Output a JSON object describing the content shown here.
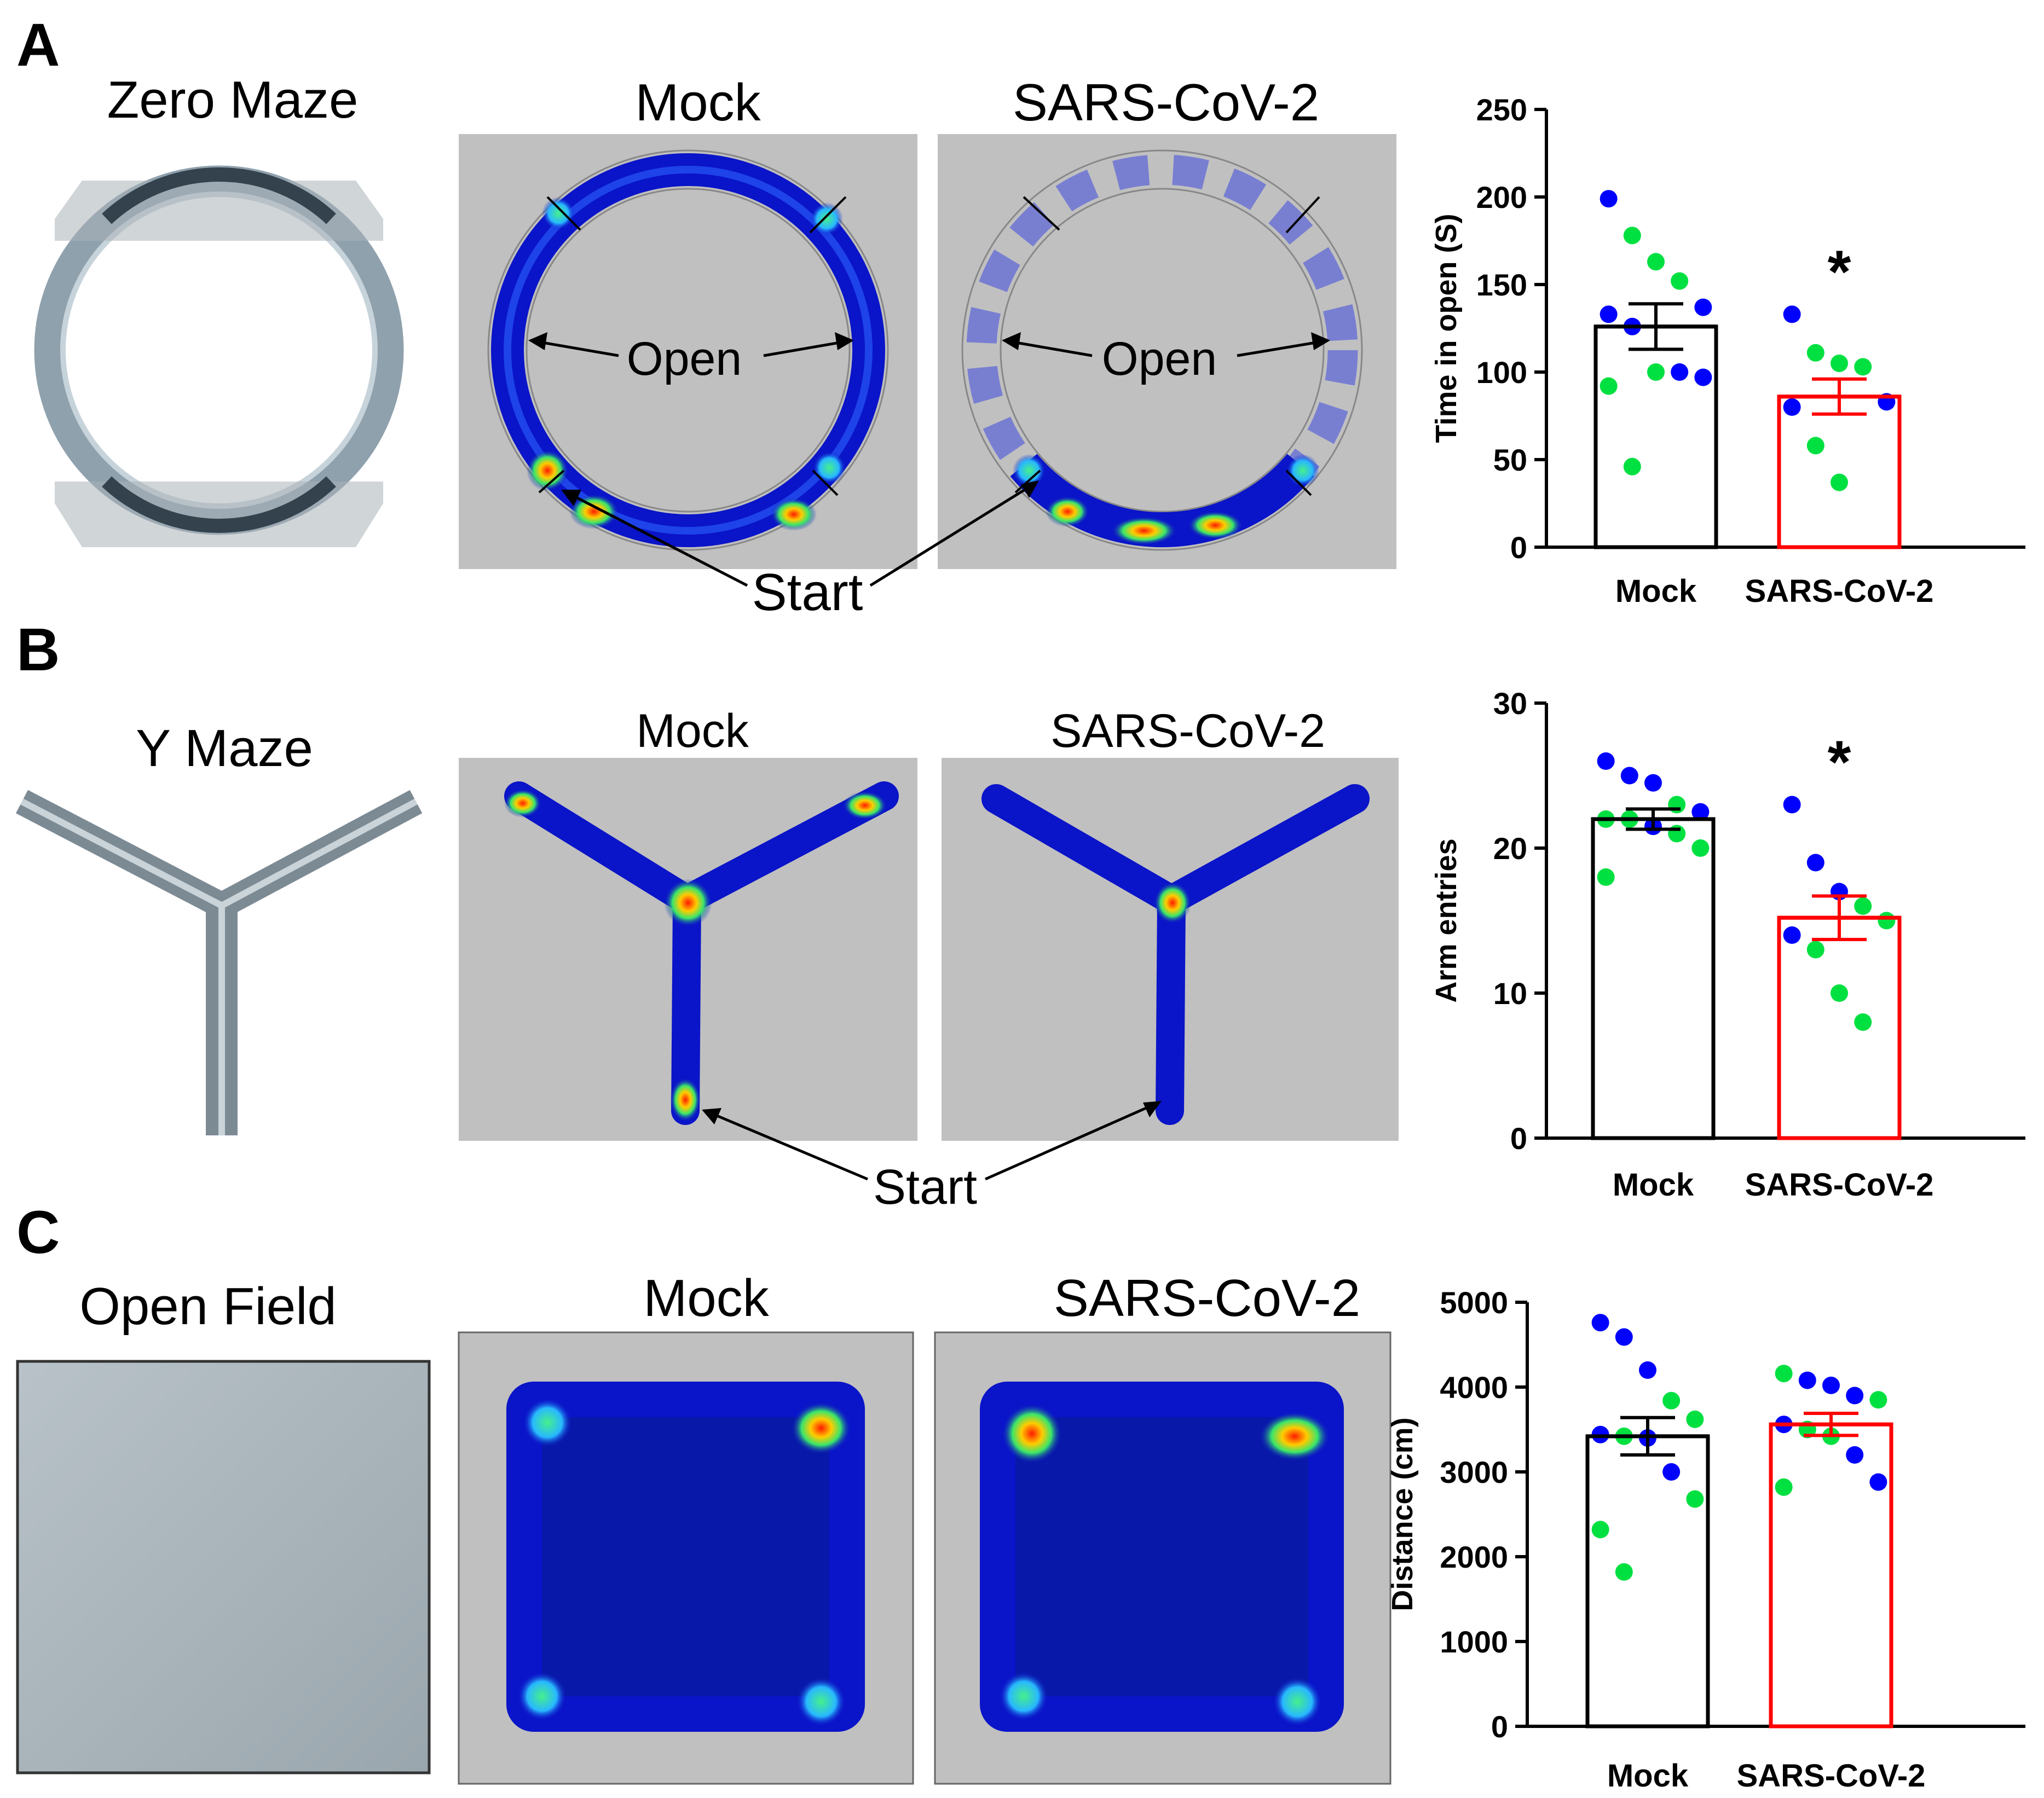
{
  "panels": [
    {
      "letter": "A",
      "apparatus_label": "Zero Maze",
      "apparatus_icon": "zero-maze-apparatus",
      "heatmap_titles": [
        "Mock",
        "SARS-CoV-2"
      ],
      "zone_label": "Open",
      "start_label": "Start"
    },
    {
      "letter": "B",
      "apparatus_label": "Y Maze",
      "apparatus_icon": "y-maze-apparatus",
      "heatmap_titles": [
        "Mock",
        "SARS-CoV-2"
      ],
      "start_label": "Start"
    },
    {
      "letter": "C",
      "apparatus_label": "Open Field",
      "apparatus_icon": "open-field-apparatus",
      "heatmap_titles": [
        "Mock",
        "SARS-CoV-2"
      ]
    }
  ],
  "colors": {
    "mock_bar": "#000000",
    "sars_bar": "#ff0000",
    "dot_blue": "#0000ff",
    "dot_green": "#00e040",
    "heatmap_background": "#c0c0c0",
    "heatmap_track": "#0a14c8",
    "heatmap_hot": "#ff2a00"
  },
  "chart_data": [
    {
      "type": "bar",
      "categories": [
        "Mock",
        "SARS-CoV-2"
      ],
      "ylabel": "Time in open (S)",
      "xlabel": "",
      "ylim": [
        0,
        250
      ],
      "yticks": [
        0,
        50,
        100,
        150,
        200,
        250
      ],
      "values": [
        126,
        86
      ],
      "sem": [
        13,
        10
      ],
      "significance": [
        "",
        "*"
      ],
      "points": [
        [
          {
            "y": 199,
            "c": "blue"
          },
          {
            "y": 178,
            "c": "green"
          },
          {
            "y": 163,
            "c": "green"
          },
          {
            "y": 152,
            "c": "green"
          },
          {
            "y": 137,
            "c": "blue"
          },
          {
            "y": 133,
            "c": "blue"
          },
          {
            "y": 126,
            "c": "blue"
          },
          {
            "y": 100,
            "c": "green"
          },
          {
            "y": 100,
            "c": "blue"
          },
          {
            "y": 97,
            "c": "blue"
          },
          {
            "y": 92,
            "c": "green"
          },
          {
            "y": 46,
            "c": "green"
          }
        ],
        [
          {
            "y": 133,
            "c": "blue"
          },
          {
            "y": 111,
            "c": "green"
          },
          {
            "y": 105,
            "c": "green"
          },
          {
            "y": 103,
            "c": "green"
          },
          {
            "y": 83,
            "c": "blue"
          },
          {
            "y": 80,
            "c": "blue"
          },
          {
            "y": 58,
            "c": "green"
          },
          {
            "y": 37,
            "c": "green"
          }
        ]
      ]
    },
    {
      "type": "bar",
      "categories": [
        "Mock",
        "SARS-CoV-2"
      ],
      "ylabel": "Arm entries",
      "xlabel": "",
      "ylim": [
        0,
        30
      ],
      "yticks": [
        0,
        10,
        20,
        30
      ],
      "values": [
        22,
        15.2
      ],
      "sem": [
        0.7,
        1.5
      ],
      "significance": [
        "",
        "*"
      ],
      "points": [
        [
          {
            "y": 26,
            "c": "blue"
          },
          {
            "y": 25,
            "c": "blue"
          },
          {
            "y": 24.5,
            "c": "blue"
          },
          {
            "y": 23,
            "c": "green"
          },
          {
            "y": 22.5,
            "c": "blue"
          },
          {
            "y": 22,
            "c": "green"
          },
          {
            "y": 22,
            "c": "green"
          },
          {
            "y": 21.5,
            "c": "blue"
          },
          {
            "y": 21,
            "c": "green"
          },
          {
            "y": 20,
            "c": "green"
          },
          {
            "y": 18,
            "c": "green"
          }
        ],
        [
          {
            "y": 23,
            "c": "blue"
          },
          {
            "y": 19,
            "c": "blue"
          },
          {
            "y": 17,
            "c": "blue"
          },
          {
            "y": 16,
            "c": "green"
          },
          {
            "y": 15,
            "c": "green"
          },
          {
            "y": 14,
            "c": "blue"
          },
          {
            "y": 13,
            "c": "green"
          },
          {
            "y": 10,
            "c": "green"
          },
          {
            "y": 8,
            "c": "green"
          }
        ]
      ]
    },
    {
      "type": "bar",
      "categories": [
        "Mock",
        "SARS-CoV-2"
      ],
      "ylabel": "Distance (cm)",
      "xlabel": "",
      "ylim": [
        0,
        5000
      ],
      "yticks": [
        0,
        1000,
        2000,
        3000,
        4000,
        5000
      ],
      "values": [
        3420,
        3560
      ],
      "sem": [
        220,
        130
      ],
      "significance": [
        "",
        ""
      ],
      "points": [
        [
          {
            "y": 4760,
            "c": "blue"
          },
          {
            "y": 4590,
            "c": "blue"
          },
          {
            "y": 4200,
            "c": "blue"
          },
          {
            "y": 3840,
            "c": "green"
          },
          {
            "y": 3620,
            "c": "green"
          },
          {
            "y": 3440,
            "c": "blue"
          },
          {
            "y": 3420,
            "c": "green"
          },
          {
            "y": 3400,
            "c": "blue"
          },
          {
            "y": 3000,
            "c": "blue"
          },
          {
            "y": 2680,
            "c": "green"
          },
          {
            "y": 2320,
            "c": "green"
          },
          {
            "y": 1820,
            "c": "green"
          }
        ],
        [
          {
            "y": 4160,
            "c": "green"
          },
          {
            "y": 4080,
            "c": "blue"
          },
          {
            "y": 4020,
            "c": "blue"
          },
          {
            "y": 3900,
            "c": "blue"
          },
          {
            "y": 3850,
            "c": "green"
          },
          {
            "y": 3560,
            "c": "blue"
          },
          {
            "y": 3500,
            "c": "green"
          },
          {
            "y": 3420,
            "c": "green"
          },
          {
            "y": 3200,
            "c": "blue"
          },
          {
            "y": 2880,
            "c": "blue"
          },
          {
            "y": 2820,
            "c": "green"
          }
        ]
      ]
    }
  ]
}
